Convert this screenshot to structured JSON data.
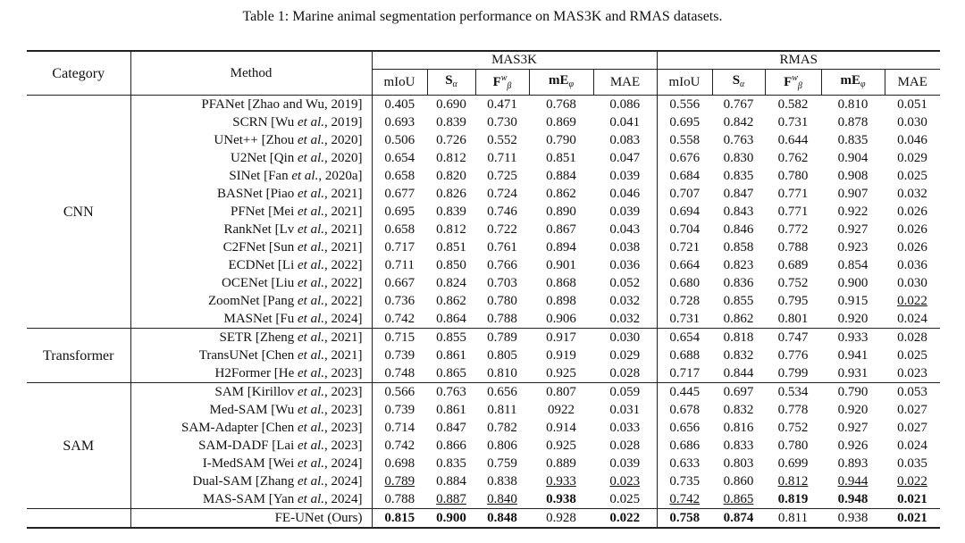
{
  "caption": "Table 1: Marine animal segmentation performance on MAS3K and RMAS datasets.",
  "headers": {
    "category": "Category",
    "method": "Method",
    "dataset1": "MAS3K",
    "dataset2": "RMAS",
    "metrics": [
      {
        "base": "mIoU",
        "sub": "",
        "sup": "",
        "bold": false
      },
      {
        "base": "S",
        "sub": "α",
        "sup": "",
        "bold": true
      },
      {
        "base": "F",
        "sub": "β",
        "sup": "w",
        "bold": true
      },
      {
        "base": "mE",
        "sub": "φ",
        "sup": "",
        "bold": true
      },
      {
        "base": "MAE",
        "sub": "",
        "sup": "",
        "bold": false
      }
    ]
  },
  "groups": [
    {
      "category": "CNN",
      "rows": [
        {
          "method": "PFANet [Zhao and Wu, 2019]",
          "m": [
            "0.405",
            "0.690",
            "0.471",
            "0.768",
            "0.086"
          ],
          "r": [
            "0.556",
            "0.767",
            "0.582",
            "0.810",
            "0.051"
          ]
        },
        {
          "method": "SCRN [Wu et al., 2019]",
          "m": [
            "0.693",
            "0.839",
            "0.730",
            "0.869",
            "0.041"
          ],
          "r": [
            "0.695",
            "0.842",
            "0.731",
            "0.878",
            "0.030"
          ]
        },
        {
          "method": "UNet++ [Zhou et al., 2020]",
          "m": [
            "0.506",
            "0.726",
            "0.552",
            "0.790",
            "0.083"
          ],
          "r": [
            "0.558",
            "0.763",
            "0.644",
            "0.835",
            "0.046"
          ]
        },
        {
          "method": "U2Net [Qin et al., 2020]",
          "m": [
            "0.654",
            "0.812",
            "0.711",
            "0.851",
            "0.047"
          ],
          "r": [
            "0.676",
            "0.830",
            "0.762",
            "0.904",
            "0.029"
          ]
        },
        {
          "method": "SINet [Fan et al., 2020a]",
          "m": [
            "0.658",
            "0.820",
            "0.725",
            "0.884",
            "0.039"
          ],
          "r": [
            "0.684",
            "0.835",
            "0.780",
            "0.908",
            "0.025"
          ]
        },
        {
          "method": "BASNet [Piao et al., 2021]",
          "m": [
            "0.677",
            "0.826",
            "0.724",
            "0.862",
            "0.046"
          ],
          "r": [
            "0.707",
            "0.847",
            "0.771",
            "0.907",
            "0.032"
          ]
        },
        {
          "method": "PFNet [Mei et al., 2021]",
          "m": [
            "0.695",
            "0.839",
            "0.746",
            "0.890",
            "0.039"
          ],
          "r": [
            "0.694",
            "0.843",
            "0.771",
            "0.922",
            "0.026"
          ]
        },
        {
          "method": "RankNet [Lv et al., 2021]",
          "m": [
            "0.658",
            "0.812",
            "0.722",
            "0.867",
            "0.043"
          ],
          "r": [
            "0.704",
            "0.846",
            "0.772",
            "0.927",
            "0.026"
          ]
        },
        {
          "method": "C2FNet [Sun et al., 2021]",
          "m": [
            "0.717",
            "0.851",
            "0.761",
            "0.894",
            "0.038"
          ],
          "r": [
            "0.721",
            "0.858",
            "0.788",
            "0.923",
            "0.026"
          ]
        },
        {
          "method": "ECDNet [Li et al., 2022]",
          "m": [
            "0.711",
            "0.850",
            "0.766",
            "0.901",
            "0.036"
          ],
          "r": [
            "0.664",
            "0.823",
            "0.689",
            "0.854",
            "0.036"
          ]
        },
        {
          "method": "OCENet [Liu et al., 2022]",
          "m": [
            "0.667",
            "0.824",
            "0.703",
            "0.868",
            "0.052"
          ],
          "r": [
            "0.680",
            "0.836",
            "0.752",
            "0.900",
            "0.030"
          ]
        },
        {
          "method": "ZoomNet [Pang et al., 2022]",
          "m": [
            "0.736",
            "0.862",
            "0.780",
            "0.898",
            "0.032"
          ],
          "r": [
            "0.728",
            "0.855",
            "0.795",
            "0.915",
            "0.022"
          ],
          "r_ul": [
            4
          ]
        },
        {
          "method": "MASNet [Fu et al., 2024]",
          "m": [
            "0.742",
            "0.864",
            "0.788",
            "0.906",
            "0.032"
          ],
          "r": [
            "0.731",
            "0.862",
            "0.801",
            "0.920",
            "0.024"
          ]
        }
      ]
    },
    {
      "category": "Transformer",
      "rows": [
        {
          "method": "SETR [Zheng et al., 2021]",
          "m": [
            "0.715",
            "0.855",
            "0.789",
            "0.917",
            "0.030"
          ],
          "r": [
            "0.654",
            "0.818",
            "0.747",
            "0.933",
            "0.028"
          ]
        },
        {
          "method": "TransUNet [Chen et al., 2021]",
          "m": [
            "0.739",
            "0.861",
            "0.805",
            "0.919",
            "0.029"
          ],
          "r": [
            "0.688",
            "0.832",
            "0.776",
            "0.941",
            "0.025"
          ]
        },
        {
          "method": "H2Former [He et al., 2023]",
          "m": [
            "0.748",
            "0.865",
            "0.810",
            "0.925",
            "0.028"
          ],
          "r": [
            "0.717",
            "0.844",
            "0.799",
            "0.931",
            "0.023"
          ]
        }
      ]
    },
    {
      "category": "SAM",
      "rows": [
        {
          "method": "SAM [Kirillov et al., 2023]",
          "m": [
            "0.566",
            "0.763",
            "0.656",
            "0.807",
            "0.059"
          ],
          "r": [
            "0.445",
            "0.697",
            "0.534",
            "0.790",
            "0.053"
          ]
        },
        {
          "method": "Med-SAM [Wu et al., 2023]",
          "m": [
            "0.739",
            "0.861",
            "0.811",
            "0922",
            "0.031"
          ],
          "r": [
            "0.678",
            "0.832",
            "0.778",
            "0.920",
            "0.027"
          ]
        },
        {
          "method": "SAM-Adapter [Chen et al., 2023]",
          "m": [
            "0.714",
            "0.847",
            "0.782",
            "0.914",
            "0.033"
          ],
          "r": [
            "0.656",
            "0.816",
            "0.752",
            "0.927",
            "0.027"
          ]
        },
        {
          "method": "SAM-DADF [Lai et al., 2023]",
          "m": [
            "0.742",
            "0.866",
            "0.806",
            "0.925",
            "0.028"
          ],
          "r": [
            "0.686",
            "0.833",
            "0.780",
            "0.926",
            "0.024"
          ]
        },
        {
          "method": "I-MedSAM [Wei et al., 2024]",
          "m": [
            "0.698",
            "0.835",
            "0.759",
            "0.889",
            "0.039"
          ],
          "r": [
            "0.633",
            "0.803",
            "0.699",
            "0.893",
            "0.035"
          ]
        },
        {
          "method": "Dual-SAM [Zhang et al., 2024]",
          "m": [
            "0.789",
            "0.884",
            "0.838",
            "0.933",
            "0.023"
          ],
          "r": [
            "0.735",
            "0.860",
            "0.812",
            "0.944",
            "0.022"
          ],
          "m_ul": [
            0,
            3,
            4
          ],
          "r_ul": [
            2,
            3,
            4
          ]
        },
        {
          "method": "MAS-SAM [Yan et al., 2024]",
          "m": [
            "0.788",
            "0.887",
            "0.840",
            "0.938",
            "0.025"
          ],
          "r": [
            "0.742",
            "0.865",
            "0.819",
            "0.948",
            "0.021"
          ],
          "m_ul": [
            1,
            2
          ],
          "m_bold": [
            3
          ],
          "r_ul": [
            0,
            1
          ],
          "r_bold": [
            2,
            3,
            4
          ]
        }
      ]
    }
  ],
  "ours": {
    "method": "FE-UNet (Ours)",
    "m": [
      "0.815",
      "0.900",
      "0.848",
      "0.928",
      "0.022"
    ],
    "r": [
      "0.758",
      "0.874",
      "0.811",
      "0.938",
      "0.021"
    ],
    "m_bold": [
      0,
      1,
      2,
      4
    ],
    "r_bold": [
      0,
      1,
      4
    ]
  }
}
